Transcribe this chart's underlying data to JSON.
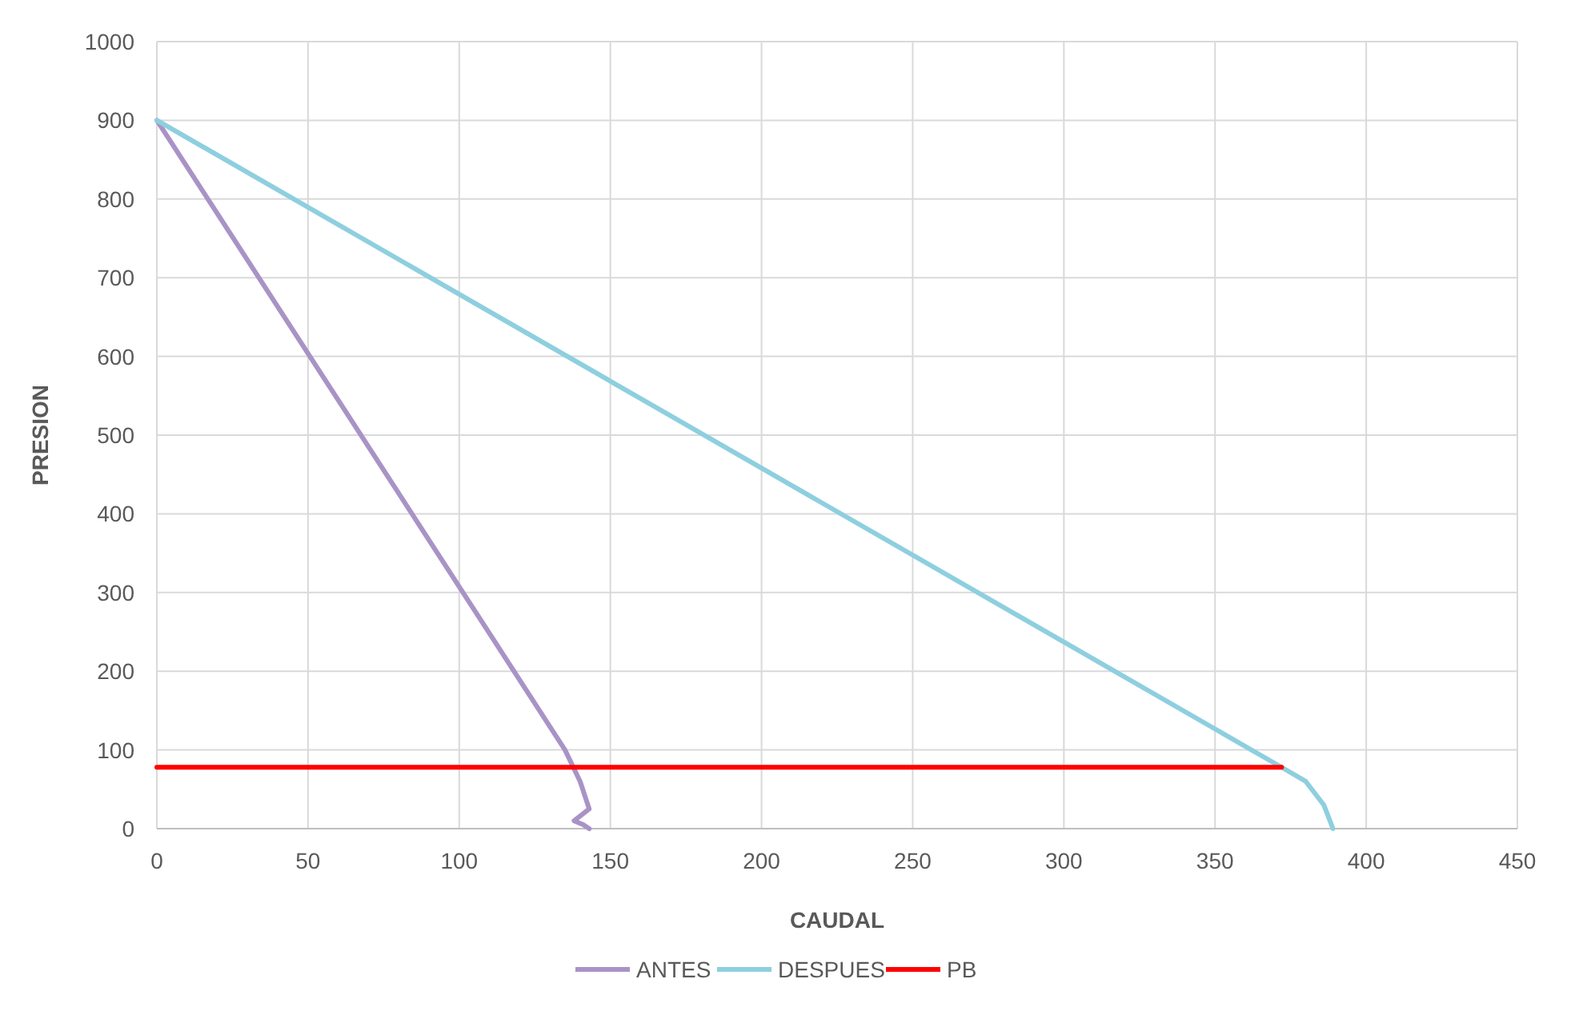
{
  "chart_data": {
    "type": "line",
    "xlabel": "CAUDAL",
    "ylabel": "PRESION",
    "xlim": [
      0,
      450
    ],
    "ylim": [
      0,
      1000
    ],
    "xticks": [
      0,
      50,
      100,
      150,
      200,
      250,
      300,
      350,
      400,
      450
    ],
    "yticks": [
      0,
      100,
      200,
      300,
      400,
      500,
      600,
      700,
      800,
      900,
      1000
    ],
    "grid": true,
    "legend": "bottom",
    "marker": "none",
    "line_style": "solid",
    "series": [
      {
        "name": "ANTES",
        "color": "#a993c6",
        "x": [
          0,
          135,
          140,
          143,
          138,
          141,
          143
        ],
        "values": [
          900,
          100,
          60,
          25,
          10,
          5,
          0
        ]
      },
      {
        "name": "DESPUES",
        "color": "#8ecfdf",
        "x": [
          0,
          372,
          380,
          386,
          389
        ],
        "values": [
          900,
          78,
          60,
          30,
          0
        ]
      },
      {
        "name": "PB",
        "color": "#ff0000",
        "x": [
          0,
          372
        ],
        "values": [
          78,
          78
        ]
      }
    ]
  }
}
